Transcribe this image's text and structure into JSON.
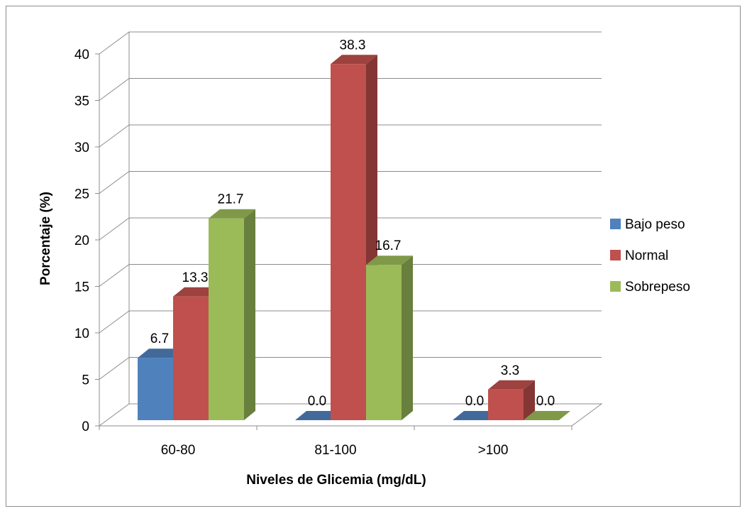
{
  "chart_data": {
    "type": "bar",
    "title": "",
    "xlabel": "Niveles de Glicemia (mg/dL)",
    "ylabel": "Porcentaje (%)",
    "ylim": [
      0,
      40
    ],
    "yticks": [
      "0",
      "5",
      "10",
      "15",
      "20",
      "25",
      "30",
      "35",
      "40"
    ],
    "categories": [
      "60-80",
      "81-100",
      ">100"
    ],
    "series": [
      {
        "name": "Bajo peso",
        "values": [
          6.7,
          0.0,
          0.0
        ],
        "labels": [
          "6.7",
          "0.0",
          "0.0"
        ],
        "color": "#4F81BD"
      },
      {
        "name": "Normal",
        "values": [
          13.3,
          38.3,
          3.3
        ],
        "labels": [
          "13.3",
          "38.3",
          "3.3"
        ],
        "color": "#C0504D"
      },
      {
        "name": "Sobrepeso",
        "values": [
          21.7,
          16.7,
          0.0
        ],
        "labels": [
          "21.7",
          "16.7",
          "0.0"
        ],
        "color": "#9BBB59"
      }
    ],
    "grid": true,
    "legend_position": "right",
    "style": "3d-clustered-column"
  }
}
